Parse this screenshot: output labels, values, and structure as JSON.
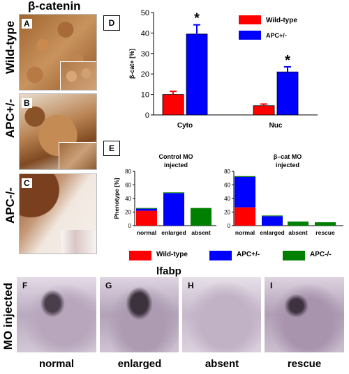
{
  "top_title": "β-catenin",
  "left_rows": [
    {
      "label": "Wild-type",
      "letter": "A"
    },
    {
      "label": "APC+/-",
      "letter": "B"
    },
    {
      "label": "APC-/-",
      "letter": "C"
    }
  ],
  "panel_d": {
    "letter": "D",
    "legend": [
      "Wild-type",
      "APC+/-"
    ]
  },
  "panel_e": {
    "letter": "E",
    "left_title": [
      "Control MO",
      "injected"
    ],
    "right_title": [
      "β–cat MO",
      "injected"
    ],
    "legend": [
      "Wild-type",
      "APC+/-",
      "APC-/-"
    ]
  },
  "bottom": {
    "title": "lfabp",
    "row_label": "MO injected",
    "panels": [
      {
        "letter": "F",
        "label": "normal"
      },
      {
        "letter": "G",
        "label": "enlarged"
      },
      {
        "letter": "H",
        "label": "absent"
      },
      {
        "letter": "I",
        "label": "rescue"
      }
    ]
  },
  "colors": {
    "wildtype": "#ff0000",
    "apc_het": "#0000ff",
    "apc_hom": "#008000"
  },
  "chart_data": [
    {
      "type": "bar",
      "panel": "D",
      "ylabel": "β-cat+ [%]",
      "ylim": [
        0,
        50
      ],
      "yticks": [
        0,
        10,
        20,
        30,
        40,
        50
      ],
      "categories": [
        "Cyto",
        "Nuc"
      ],
      "series": [
        {
          "name": "Wild-type",
          "values": [
            10,
            4.5
          ],
          "errors": [
            1.5,
            0.8
          ]
        },
        {
          "name": "APC+/-",
          "values": [
            39.5,
            21
          ],
          "errors": [
            4.5,
            2.5
          ]
        }
      ],
      "annotations": [
        "*",
        "*"
      ]
    },
    {
      "type": "bar",
      "panel": "E-left",
      "stacked": true,
      "ylabel": "Phenotype [%]",
      "ylim": [
        0,
        80
      ],
      "yticks": [
        0,
        20,
        40,
        60,
        80
      ],
      "categories": [
        "normal",
        "enlarged",
        "absent"
      ],
      "series": [
        {
          "name": "Wild-type",
          "values": [
            22,
            0,
            0
          ]
        },
        {
          "name": "APC+/-",
          "values": [
            3,
            48,
            0
          ]
        },
        {
          "name": "APC-/-",
          "values": [
            1,
            1,
            26
          ]
        }
      ]
    },
    {
      "type": "bar",
      "panel": "E-right",
      "stacked": true,
      "ylim": [
        0,
        80
      ],
      "yticks": [
        0,
        20,
        40,
        60,
        80
      ],
      "categories": [
        "normal",
        "enlarged",
        "absent",
        "rescue"
      ],
      "series": [
        {
          "name": "Wild-type",
          "values": [
            27,
            0,
            0,
            0
          ]
        },
        {
          "name": "APC+/-",
          "values": [
            45,
            14,
            0,
            0
          ]
        },
        {
          "name": "APC-/-",
          "values": [
            1,
            1,
            6,
            5
          ]
        }
      ]
    }
  ]
}
